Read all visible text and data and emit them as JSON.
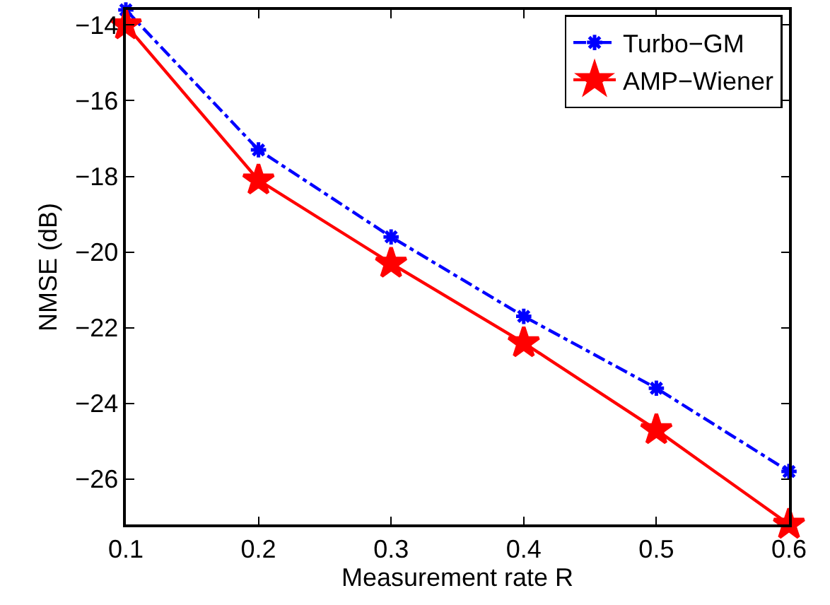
{
  "chart_data": {
    "type": "line",
    "xlabel": "Measurement rate R",
    "ylabel": "NMSE (dB)",
    "x": [
      0.1,
      0.2,
      0.3,
      0.4,
      0.5,
      0.6
    ],
    "series": [
      {
        "name": "Turbo−GM",
        "color": "#0000ff",
        "values": [
          -13.6,
          -17.3,
          -19.6,
          -21.7,
          -23.6,
          -25.8
        ],
        "marker": "cross",
        "line_style": "dashed"
      },
      {
        "name": "AMP−Wiener",
        "color": "#ff0000",
        "values": [
          -14.0,
          -18.1,
          -20.3,
          -22.4,
          -24.7,
          -27.2
        ],
        "marker": "star",
        "line_style": "solid"
      }
    ],
    "xlim": [
      0.1,
      0.6
    ],
    "xticks": [
      0.1,
      0.2,
      0.3,
      0.4,
      0.5,
      0.6
    ],
    "ylim": [
      -27.2,
      -13.6
    ],
    "yticks": [
      -26,
      -24,
      -22,
      -20,
      -18,
      -16,
      -14
    ],
    "legend": "top right"
  }
}
